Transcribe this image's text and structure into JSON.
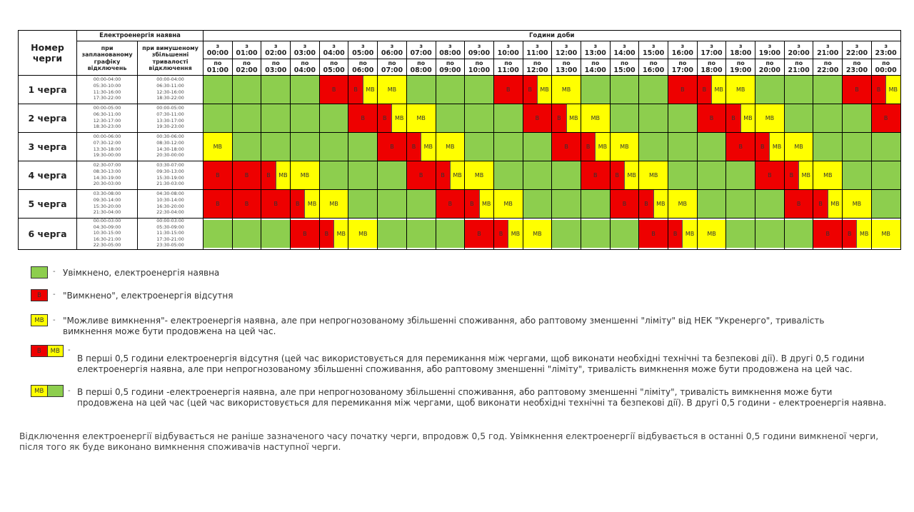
{
  "header": {
    "queue_number": "Номер черги",
    "electricity_available": "Електроенергія наявна",
    "planned": "при запланованому графіку відключень",
    "increased": "при вимушеному збільшенні тривалості відключення",
    "hours_of_day": "Години доби",
    "from_prefix": "з",
    "to_prefix": "по",
    "hours_from": [
      "00:00",
      "01:00",
      "02:00",
      "03:00",
      "04:00",
      "05:00",
      "06:00",
      "07:00",
      "08:00",
      "09:00",
      "10:00",
      "11:00",
      "12:00",
      "13:00",
      "14:00",
      "15:00",
      "16:00",
      "17:00",
      "18:00",
      "19:00",
      "20:00",
      "21:00",
      "22:00",
      "23:00"
    ],
    "hours_to": [
      "01:00",
      "02:00",
      "03:00",
      "04:00",
      "05:00",
      "06:00",
      "07:00",
      "08:00",
      "09:00",
      "10:00",
      "11:00",
      "12:00",
      "13:00",
      "14:00",
      "15:00",
      "16:00",
      "17:00",
      "18:00",
      "19:00",
      "20:00",
      "21:00",
      "22:00",
      "23:00",
      "00:00"
    ]
  },
  "labels": {
    "off": "В",
    "maybe": "МВ"
  },
  "colors": {
    "on": "#8dce4e",
    "off": "#ee0000",
    "maybe": "#ffff00"
  },
  "queues": [
    {
      "name": "1 черга",
      "planned": [
        "00:00-04:00",
        "05:30-10:00",
        "11:30-16:00",
        "17:30-22:00"
      ],
      "increased": [
        "00:00-04:00",
        "06:30-11:00",
        "12:30-16:00",
        "18:30-22:00"
      ],
      "slots": [
        "G",
        "G",
        "G",
        "G",
        "R",
        "RY",
        "Y",
        "G",
        "G",
        "G",
        "R",
        "RY",
        "Y",
        "G",
        "G",
        "G",
        "R",
        "RY",
        "Y",
        "G",
        "G",
        "G",
        "R",
        "RY"
      ]
    },
    {
      "name": "2 черга",
      "planned": [
        "00:00-05:00",
        "06:30-11:00",
        "12:30-17:00",
        "18:30-23:00"
      ],
      "increased": [
        "00:00-05:00",
        "07:30-11:00",
        "13:30-17:00",
        "19:30-23:00"
      ],
      "slots": [
        "G",
        "G",
        "G",
        "G",
        "G",
        "R",
        "RY",
        "Y",
        "G",
        "G",
        "G",
        "R",
        "RY",
        "Y",
        "G",
        "G",
        "G",
        "R",
        "RY",
        "Y",
        "G",
        "G",
        "G",
        "R"
      ]
    },
    {
      "name": "3 черга",
      "planned": [
        "00:00-06:00",
        "07:30-12:00",
        "13:30-18:00",
        "19:30-00:00"
      ],
      "increased": [
        "00:30-06:00",
        "08:30-12:00",
        "14:30-18:00",
        "20:30-00:00"
      ],
      "slots": [
        "Y",
        "G",
        "G",
        "G",
        "G",
        "G",
        "R",
        "RY",
        "Y",
        "G",
        "G",
        "G",
        "R",
        "RY",
        "Y",
        "G",
        "G",
        "G",
        "R",
        "RY",
        "Y",
        "G",
        "G",
        "G"
      ]
    },
    {
      "name": "4 черга",
      "planned": [
        "02:30-07:00",
        "08:30-13:00",
        "14:30-19:00",
        "20:30-03:00"
      ],
      "increased": [
        "03:30-07:00",
        "09:30-13:00",
        "15:30-19:00",
        "21:30-03:00"
      ],
      "slots": [
        "R",
        "R",
        "RY",
        "Y",
        "G",
        "G",
        "G",
        "R",
        "RY",
        "Y",
        "G",
        "G",
        "G",
        "R",
        "RY",
        "Y",
        "G",
        "G",
        "G",
        "R",
        "RY",
        "Y",
        "G",
        "G"
      ]
    },
    {
      "name": "5 черга",
      "planned": [
        "03:30-08:00",
        "09:30-14:00",
        "15:30-20:00",
        "21:30-04:00"
      ],
      "increased": [
        "04:30-08:00",
        "10:30-14:00",
        "16:30-20:00",
        "22:30-04:00"
      ],
      "slots": [
        "R",
        "R",
        "R",
        "RY",
        "Y",
        "G",
        "G",
        "G",
        "R",
        "RY",
        "Y",
        "G",
        "G",
        "G",
        "R",
        "RY",
        "Y",
        "G",
        "G",
        "G",
        "R",
        "RY",
        "Y",
        "G"
      ]
    },
    {
      "name": "6 черга",
      "planned": [
        "00:00-03:00",
        "04:30-09:00",
        "10:30-15:00",
        "16:30-21:00",
        "22:30-05:00"
      ],
      "increased": [
        "00:00-03:00",
        "05:30-09:00",
        "11:30-15:00",
        "17:30-21:00",
        "23:30-05:00"
      ],
      "slots": [
        "G",
        "G",
        "G",
        "R",
        "RY",
        "Y",
        "G",
        "G",
        "G",
        "R",
        "RY",
        "Y",
        "G",
        "G",
        "G",
        "R",
        "RY",
        "Y",
        "G",
        "G",
        "G",
        "R",
        "RY",
        "Y"
      ]
    }
  ],
  "legend": {
    "on_text": "Увімкнено, електроенергія наявна",
    "off_text": "\"Вимкнено\", електроенергія відсутня",
    "maybe_text": "\"Можливе вимкнення\"- електроенергія наявна, але при непрогнозованому збільшенні споживання, або раптовому зменшенні \"ліміту\" від НЕК \"Укренерго\", тривалість вимкнення може бути продовжена на цей час.",
    "off_maybe_text": "В перші 0,5 години електроенергія відсутня (цей час використовується для перемикання між чергами, щоб виконати необхідні технічні та безпекові дії). В другі 0,5 години електроенергія наявна, але при непрогнозованому збільшенні споживання, або раптовому зменшенні \"ліміту\", тривалість вимкнення може бути продовжена на цей час.",
    "maybe_on_text": "В перші 0,5 години -електроенергія наявна, але при непрогнозованому збільшенні споживання, або раптовому зменшенні \"ліміту\", тривалість вимкнення може бути продовжена на цей час (цей час використовується для перемикання між чергами, щоб виконати необхідні технічні та безпекові дії). В другі 0,5 години - електроенергія наявна."
  },
  "footer_note": "Відключення електроенергії відбувається не раніше зазначеного часу початку черги, впродовж 0,5 год. Увімкнення електроенергії відбувається в останні 0,5 години вимкненої черги, після того як буде виконано вимкнення споживачів наступної черги."
}
